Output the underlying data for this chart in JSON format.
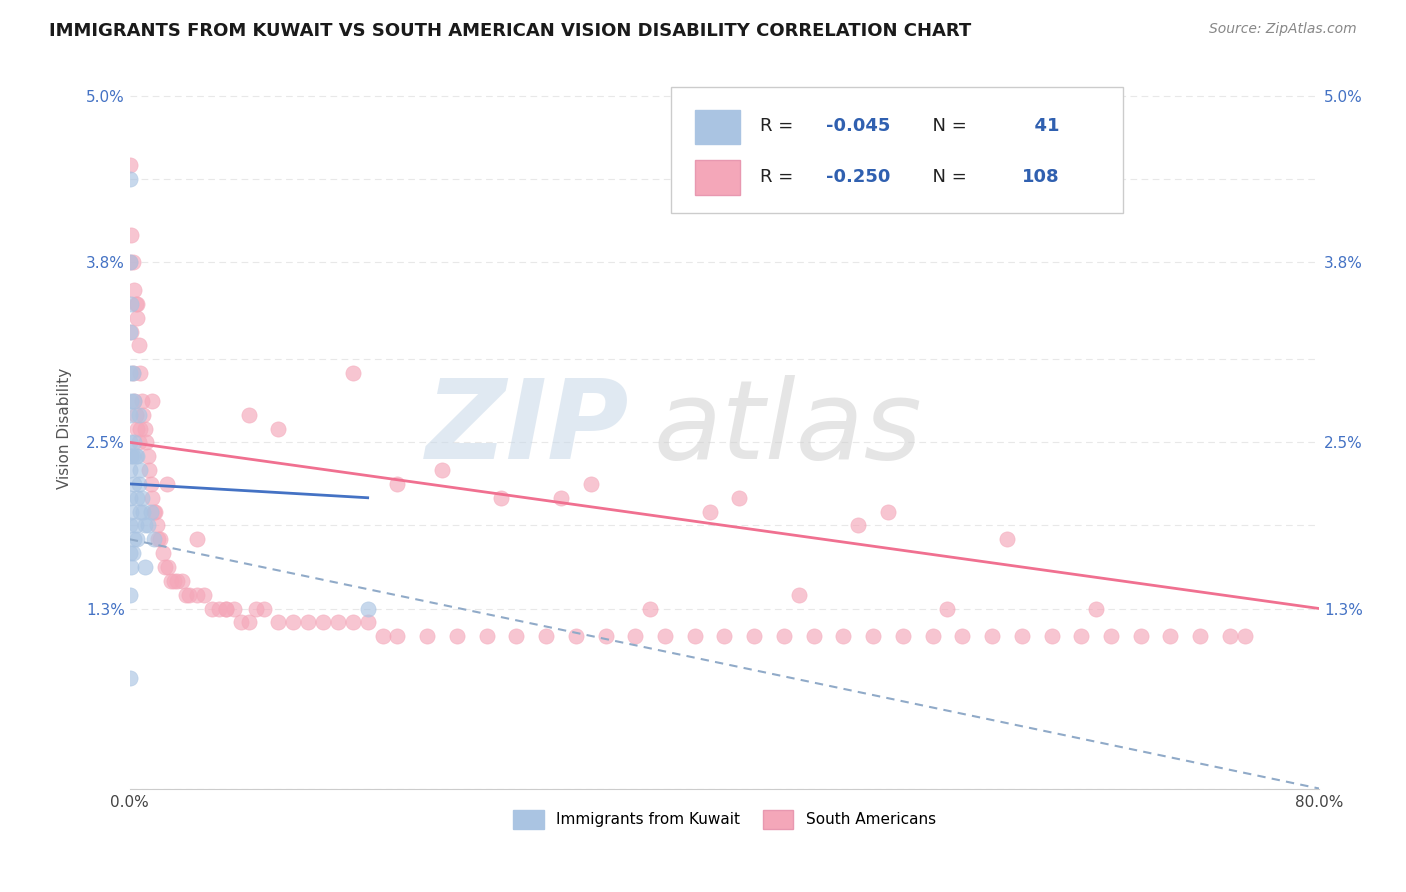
{
  "title": "IMMIGRANTS FROM KUWAIT VS SOUTH AMERICAN VISION DISABILITY CORRELATION CHART",
  "source": "Source: ZipAtlas.com",
  "ylabel": "Vision Disability",
  "xlim": [
    0.0,
    0.8
  ],
  "ylim": [
    0.0,
    0.052
  ],
  "ytick_labels": [
    "",
    "1.3%",
    "",
    "2.5%",
    "",
    "3.8%",
    "",
    "5.0%"
  ],
  "ytick_values": [
    0.0,
    0.013,
    0.019,
    0.025,
    0.031,
    0.038,
    0.044,
    0.05
  ],
  "xtick_labels": [
    "0.0%",
    "",
    "",
    "",
    "",
    "",
    "",
    "",
    "80.0%"
  ],
  "xtick_values": [
    0.0,
    0.1,
    0.2,
    0.3,
    0.4,
    0.5,
    0.6,
    0.7,
    0.8
  ],
  "legend_labels": [
    "Immigrants from Kuwait",
    "South Americans"
  ],
  "legend_R": [
    -0.045,
    -0.25
  ],
  "legend_N": [
    41,
    108
  ],
  "kuwait_color": "#aac4e2",
  "sa_color": "#f4a7b9",
  "kuwait_line_color": "#4472c4",
  "sa_line_color": "#f07090",
  "dashed_line_color": "#90aac8",
  "background_color": "#ffffff",
  "grid_color": "#e8e8e8",
  "kuwait_x": [
    0.0,
    0.0,
    0.0,
    0.0,
    0.0,
    0.0,
    0.0,
    0.0,
    0.0,
    0.0,
    0.0,
    0.0,
    0.001,
    0.001,
    0.001,
    0.001,
    0.001,
    0.002,
    0.002,
    0.002,
    0.003,
    0.003,
    0.003,
    0.003,
    0.004,
    0.004,
    0.005,
    0.005,
    0.005,
    0.006,
    0.006,
    0.007,
    0.007,
    0.008,
    0.009,
    0.01,
    0.01,
    0.012,
    0.014,
    0.016,
    0.16
  ],
  "kuwait_y": [
    0.044,
    0.038,
    0.033,
    0.03,
    0.027,
    0.025,
    0.023,
    0.021,
    0.019,
    0.017,
    0.014,
    0.008,
    0.035,
    0.028,
    0.024,
    0.02,
    0.016,
    0.03,
    0.024,
    0.017,
    0.028,
    0.025,
    0.022,
    0.018,
    0.024,
    0.019,
    0.024,
    0.021,
    0.018,
    0.027,
    0.022,
    0.023,
    0.02,
    0.021,
    0.02,
    0.019,
    0.016,
    0.019,
    0.02,
    0.018,
    0.013
  ],
  "sa_x": [
    0.0,
    0.0,
    0.001,
    0.001,
    0.002,
    0.002,
    0.003,
    0.003,
    0.004,
    0.004,
    0.005,
    0.005,
    0.006,
    0.006,
    0.007,
    0.007,
    0.008,
    0.009,
    0.01,
    0.011,
    0.012,
    0.013,
    0.014,
    0.015,
    0.016,
    0.017,
    0.018,
    0.019,
    0.02,
    0.022,
    0.024,
    0.026,
    0.028,
    0.03,
    0.032,
    0.035,
    0.038,
    0.04,
    0.045,
    0.05,
    0.055,
    0.06,
    0.065,
    0.07,
    0.075,
    0.08,
    0.09,
    0.1,
    0.11,
    0.12,
    0.13,
    0.14,
    0.15,
    0.16,
    0.17,
    0.18,
    0.2,
    0.22,
    0.24,
    0.26,
    0.28,
    0.3,
    0.32,
    0.34,
    0.36,
    0.38,
    0.4,
    0.42,
    0.44,
    0.46,
    0.48,
    0.5,
    0.52,
    0.54,
    0.56,
    0.58,
    0.6,
    0.62,
    0.64,
    0.66,
    0.68,
    0.7,
    0.72,
    0.74,
    0.75,
    0.1,
    0.21,
    0.31,
    0.41,
    0.51,
    0.08,
    0.18,
    0.29,
    0.39,
    0.49,
    0.59,
    0.005,
    0.015,
    0.025,
    0.045,
    0.065,
    0.085,
    0.35,
    0.55,
    0.65,
    0.45,
    0.25,
    0.15
  ],
  "sa_y": [
    0.045,
    0.038,
    0.04,
    0.033,
    0.038,
    0.03,
    0.036,
    0.028,
    0.035,
    0.027,
    0.034,
    0.026,
    0.032,
    0.025,
    0.03,
    0.026,
    0.028,
    0.027,
    0.026,
    0.025,
    0.024,
    0.023,
    0.022,
    0.021,
    0.02,
    0.02,
    0.019,
    0.018,
    0.018,
    0.017,
    0.016,
    0.016,
    0.015,
    0.015,
    0.015,
    0.015,
    0.014,
    0.014,
    0.014,
    0.014,
    0.013,
    0.013,
    0.013,
    0.013,
    0.012,
    0.012,
    0.013,
    0.012,
    0.012,
    0.012,
    0.012,
    0.012,
    0.012,
    0.012,
    0.011,
    0.011,
    0.011,
    0.011,
    0.011,
    0.011,
    0.011,
    0.011,
    0.011,
    0.011,
    0.011,
    0.011,
    0.011,
    0.011,
    0.011,
    0.011,
    0.011,
    0.011,
    0.011,
    0.011,
    0.011,
    0.011,
    0.011,
    0.011,
    0.011,
    0.011,
    0.011,
    0.011,
    0.011,
    0.011,
    0.011,
    0.026,
    0.023,
    0.022,
    0.021,
    0.02,
    0.027,
    0.022,
    0.021,
    0.02,
    0.019,
    0.018,
    0.035,
    0.028,
    0.022,
    0.018,
    0.013,
    0.013,
    0.013,
    0.013,
    0.013,
    0.014,
    0.021,
    0.03
  ],
  "sa_line_x0": 0.0,
  "sa_line_y0": 0.025,
  "sa_line_x1": 0.8,
  "sa_line_y1": 0.013,
  "kuwait_line_x0": 0.0,
  "kuwait_line_y0": 0.022,
  "kuwait_line_x1": 0.16,
  "kuwait_line_y1": 0.021,
  "dash_line_x0": 0.0,
  "dash_line_y0": 0.018,
  "dash_line_x1": 0.8,
  "dash_line_y1": 0.0
}
